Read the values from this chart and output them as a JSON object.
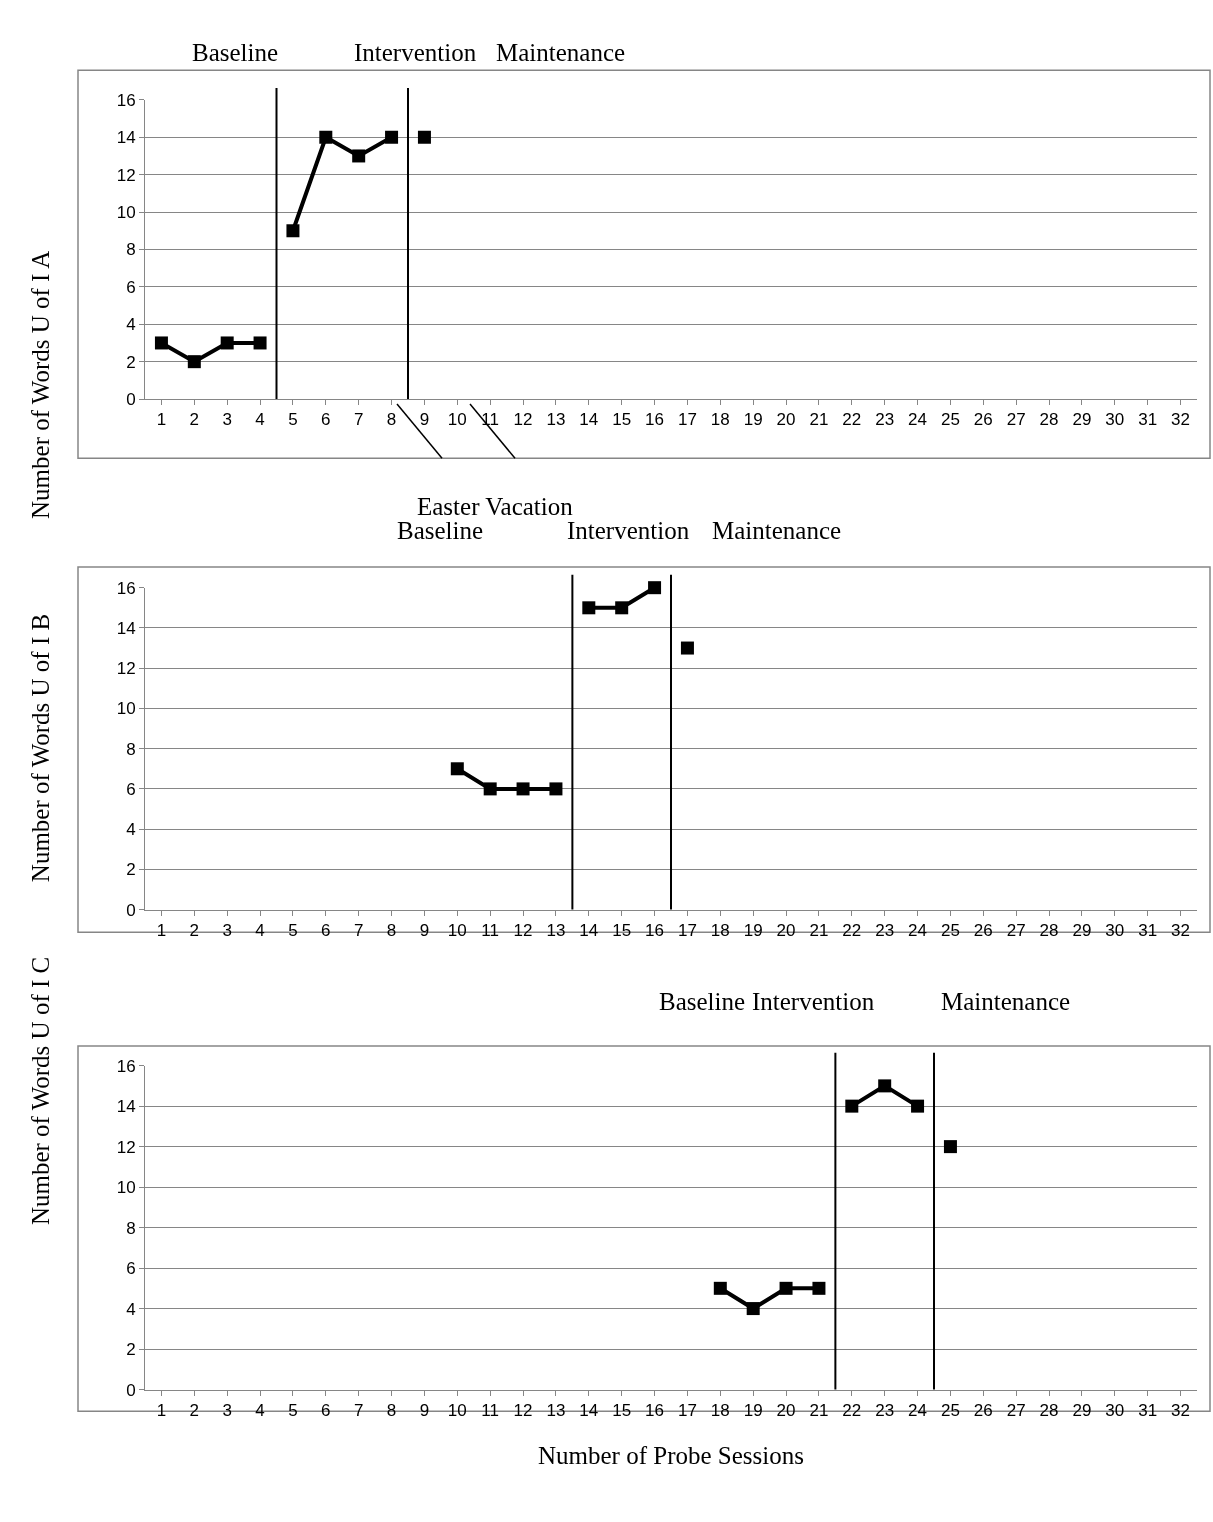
{
  "chart_data": [
    {
      "type": "line",
      "ylabel": "Number of Words U of I A",
      "xlim": [
        0.5,
        32.5
      ],
      "xticks": [
        1,
        2,
        3,
        4,
        5,
        6,
        7,
        8,
        9,
        10,
        11,
        12,
        13,
        14,
        15,
        16,
        17,
        18,
        19,
        20,
        21,
        22,
        23,
        24,
        25,
        26,
        27,
        28,
        29,
        30,
        31,
        32
      ],
      "ylim": [
        0,
        16
      ],
      "yticks": [
        0,
        2,
        4,
        6,
        8,
        10,
        12,
        14,
        16
      ],
      "grid": "y",
      "marker": "square",
      "line_style": "solid",
      "series": [
        {
          "color": "#000000",
          "x": [
            1,
            2,
            3,
            4
          ],
          "values": [
            3,
            2,
            3,
            3
          ]
        },
        {
          "color": "#000000",
          "x": [
            5,
            6,
            7,
            8
          ],
          "values": [
            9,
            14,
            13,
            14
          ]
        },
        {
          "color": "#000000",
          "x": [
            9
          ],
          "values": [
            14
          ]
        }
      ],
      "ref_lines": [
        {
          "axis": "x",
          "value": 4.5,
          "color": "#000000"
        },
        {
          "axis": "x",
          "value": 8.5,
          "color": "#000000"
        }
      ],
      "annotations": [
        "Baseline",
        "Intervention",
        "Maintenance",
        "Easter Vacation"
      ]
    },
    {
      "type": "line",
      "ylabel": "Number of Words U of I B",
      "xlim": [
        0.5,
        32.5
      ],
      "xticks": [
        1,
        2,
        3,
        4,
        5,
        6,
        7,
        8,
        9,
        10,
        11,
        12,
        13,
        14,
        15,
        16,
        17,
        18,
        19,
        20,
        21,
        22,
        23,
        24,
        25,
        26,
        27,
        28,
        29,
        30,
        31,
        32
      ],
      "ylim": [
        0,
        16
      ],
      "yticks": [
        0,
        2,
        4,
        6,
        8,
        10,
        12,
        14,
        16
      ],
      "grid": "y",
      "marker": "square",
      "line_style": "solid",
      "series": [
        {
          "color": "#000000",
          "x": [
            10,
            11,
            12,
            13
          ],
          "values": [
            7,
            6,
            6,
            6
          ]
        },
        {
          "color": "#000000",
          "x": [
            14,
            15,
            16
          ],
          "values": [
            15,
            15,
            16
          ]
        },
        {
          "color": "#000000",
          "x": [
            17
          ],
          "values": [
            13
          ]
        }
      ],
      "ref_lines": [
        {
          "axis": "x",
          "value": 13.5,
          "color": "#000000"
        },
        {
          "axis": "x",
          "value": 16.5,
          "color": "#000000"
        }
      ],
      "annotations": [
        "Baseline",
        "Intervention",
        "Maintenance"
      ]
    },
    {
      "type": "line",
      "ylabel": "Number of Words U of I C",
      "xlabel": "Number of Probe Sessions",
      "xlim": [
        0.5,
        32.5
      ],
      "xticks": [
        1,
        2,
        3,
        4,
        5,
        6,
        7,
        8,
        9,
        10,
        11,
        12,
        13,
        14,
        15,
        16,
        17,
        18,
        19,
        20,
        21,
        22,
        23,
        24,
        25,
        26,
        27,
        28,
        29,
        30,
        31,
        32
      ],
      "ylim": [
        0,
        16
      ],
      "yticks": [
        0,
        2,
        4,
        6,
        8,
        10,
        12,
        14,
        16
      ],
      "grid": "y",
      "marker": "square",
      "line_style": "solid",
      "series": [
        {
          "color": "#000000",
          "x": [
            18,
            19,
            20,
            21
          ],
          "values": [
            5,
            4,
            5,
            5
          ]
        },
        {
          "color": "#000000",
          "x": [
            22,
            23,
            24
          ],
          "values": [
            14,
            15,
            14
          ]
        },
        {
          "color": "#000000",
          "x": [
            25
          ],
          "values": [
            12
          ]
        }
      ],
      "ref_lines": [
        {
          "axis": "x",
          "value": 21.5,
          "color": "#000000"
        },
        {
          "axis": "x",
          "value": 24.5,
          "color": "#000000"
        }
      ],
      "annotations": [
        "Baseline",
        "Intervention",
        "Maintenance"
      ]
    }
  ]
}
